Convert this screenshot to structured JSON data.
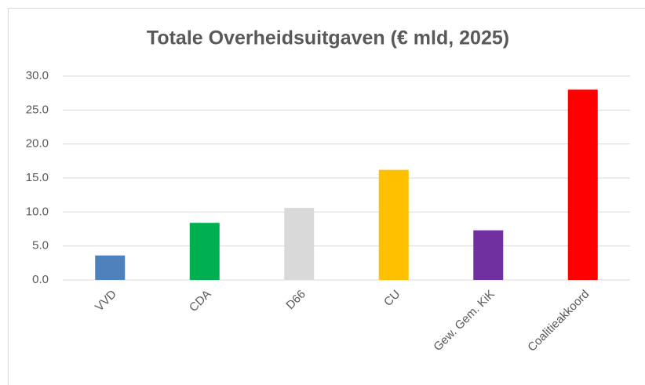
{
  "chart_data": {
    "type": "bar",
    "title": "Totale Overheidsuitgaven (€ mld, 2025)",
    "categories": [
      "VVD",
      "CDA",
      "D66",
      "CU",
      "Gew. Gem. KiK",
      "Coalitieakkoord"
    ],
    "values": [
      3.6,
      8.4,
      10.6,
      16.2,
      7.3,
      28.0
    ],
    "colors": [
      "#4f81bd",
      "#00b050",
      "#d9d9d9",
      "#ffc000",
      "#7030a0",
      "#ff0000"
    ],
    "ylim": [
      0,
      30
    ],
    "yticks": [
      {
        "value": 0,
        "label": "0.0"
      },
      {
        "value": 5,
        "label": "5.0"
      },
      {
        "value": 10,
        "label": "10.0"
      },
      {
        "value": 15,
        "label": "15.0"
      },
      {
        "value": 20,
        "label": "20.0"
      },
      {
        "value": 25,
        "label": "25.0"
      },
      {
        "value": 30,
        "label": "30.0"
      }
    ],
    "grid": true
  }
}
